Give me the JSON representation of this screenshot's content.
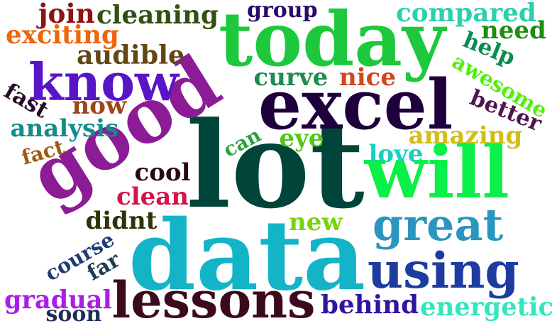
{
  "words": [
    {
      "text": "lot",
      "color": "#00443a"
    },
    {
      "text": "data",
      "color": "#14b4c8"
    },
    {
      "text": "good",
      "color": "#8c1c96"
    },
    {
      "text": "today",
      "color": "#1ec83c"
    },
    {
      "text": "excel",
      "color": "#1e003c"
    },
    {
      "text": "will",
      "color": "#0af048"
    },
    {
      "text": "know",
      "color": "#5a14c8"
    },
    {
      "text": "lessons",
      "color": "#3c0a1e"
    },
    {
      "text": "using",
      "color": "#1e3ca0"
    },
    {
      "text": "great",
      "color": "#2896be"
    },
    {
      "text": "compared",
      "color": "#28d2aa"
    },
    {
      "text": "cleaning",
      "color": "#325014"
    },
    {
      "text": "join",
      "color": "#8c1414"
    },
    {
      "text": "group",
      "color": "#280a6e"
    },
    {
      "text": "exciting",
      "color": "#f0640a"
    },
    {
      "text": "need",
      "color": "#1e8c14"
    },
    {
      "text": "audible",
      "color": "#644614"
    },
    {
      "text": "help",
      "color": "#0a8c50"
    },
    {
      "text": "awesome",
      "color": "#50f00a"
    },
    {
      "text": "curve",
      "color": "#1e8c50"
    },
    {
      "text": "nice",
      "color": "#d2461e"
    },
    {
      "text": "fast",
      "color": "#280a28"
    },
    {
      "text": "now",
      "color": "#a04614"
    },
    {
      "text": "better",
      "color": "#501450"
    },
    {
      "text": "analysis",
      "color": "#148c8c"
    },
    {
      "text": "amazing",
      "color": "#d2be14"
    },
    {
      "text": "can",
      "color": "#28a03c"
    },
    {
      "text": "eye",
      "color": "#50c814"
    },
    {
      "text": "fact",
      "color": "#a05a14"
    },
    {
      "text": "love",
      "color": "#14d2be"
    },
    {
      "text": "cool",
      "color": "#280a14"
    },
    {
      "text": "clean",
      "color": "#d21446"
    },
    {
      "text": "didnt",
      "color": "#32320a"
    },
    {
      "text": "new",
      "color": "#78d20a"
    },
    {
      "text": "course",
      "color": "#1e3c78"
    },
    {
      "text": "far",
      "color": "#1e3c50"
    },
    {
      "text": "gradual",
      "color": "#aa1ee6"
    },
    {
      "text": "soon",
      "color": "#1e2d5a"
    },
    {
      "text": "behind",
      "color": "#3214a0"
    },
    {
      "text": "energetic",
      "color": "#32e6be"
    }
  ]
}
